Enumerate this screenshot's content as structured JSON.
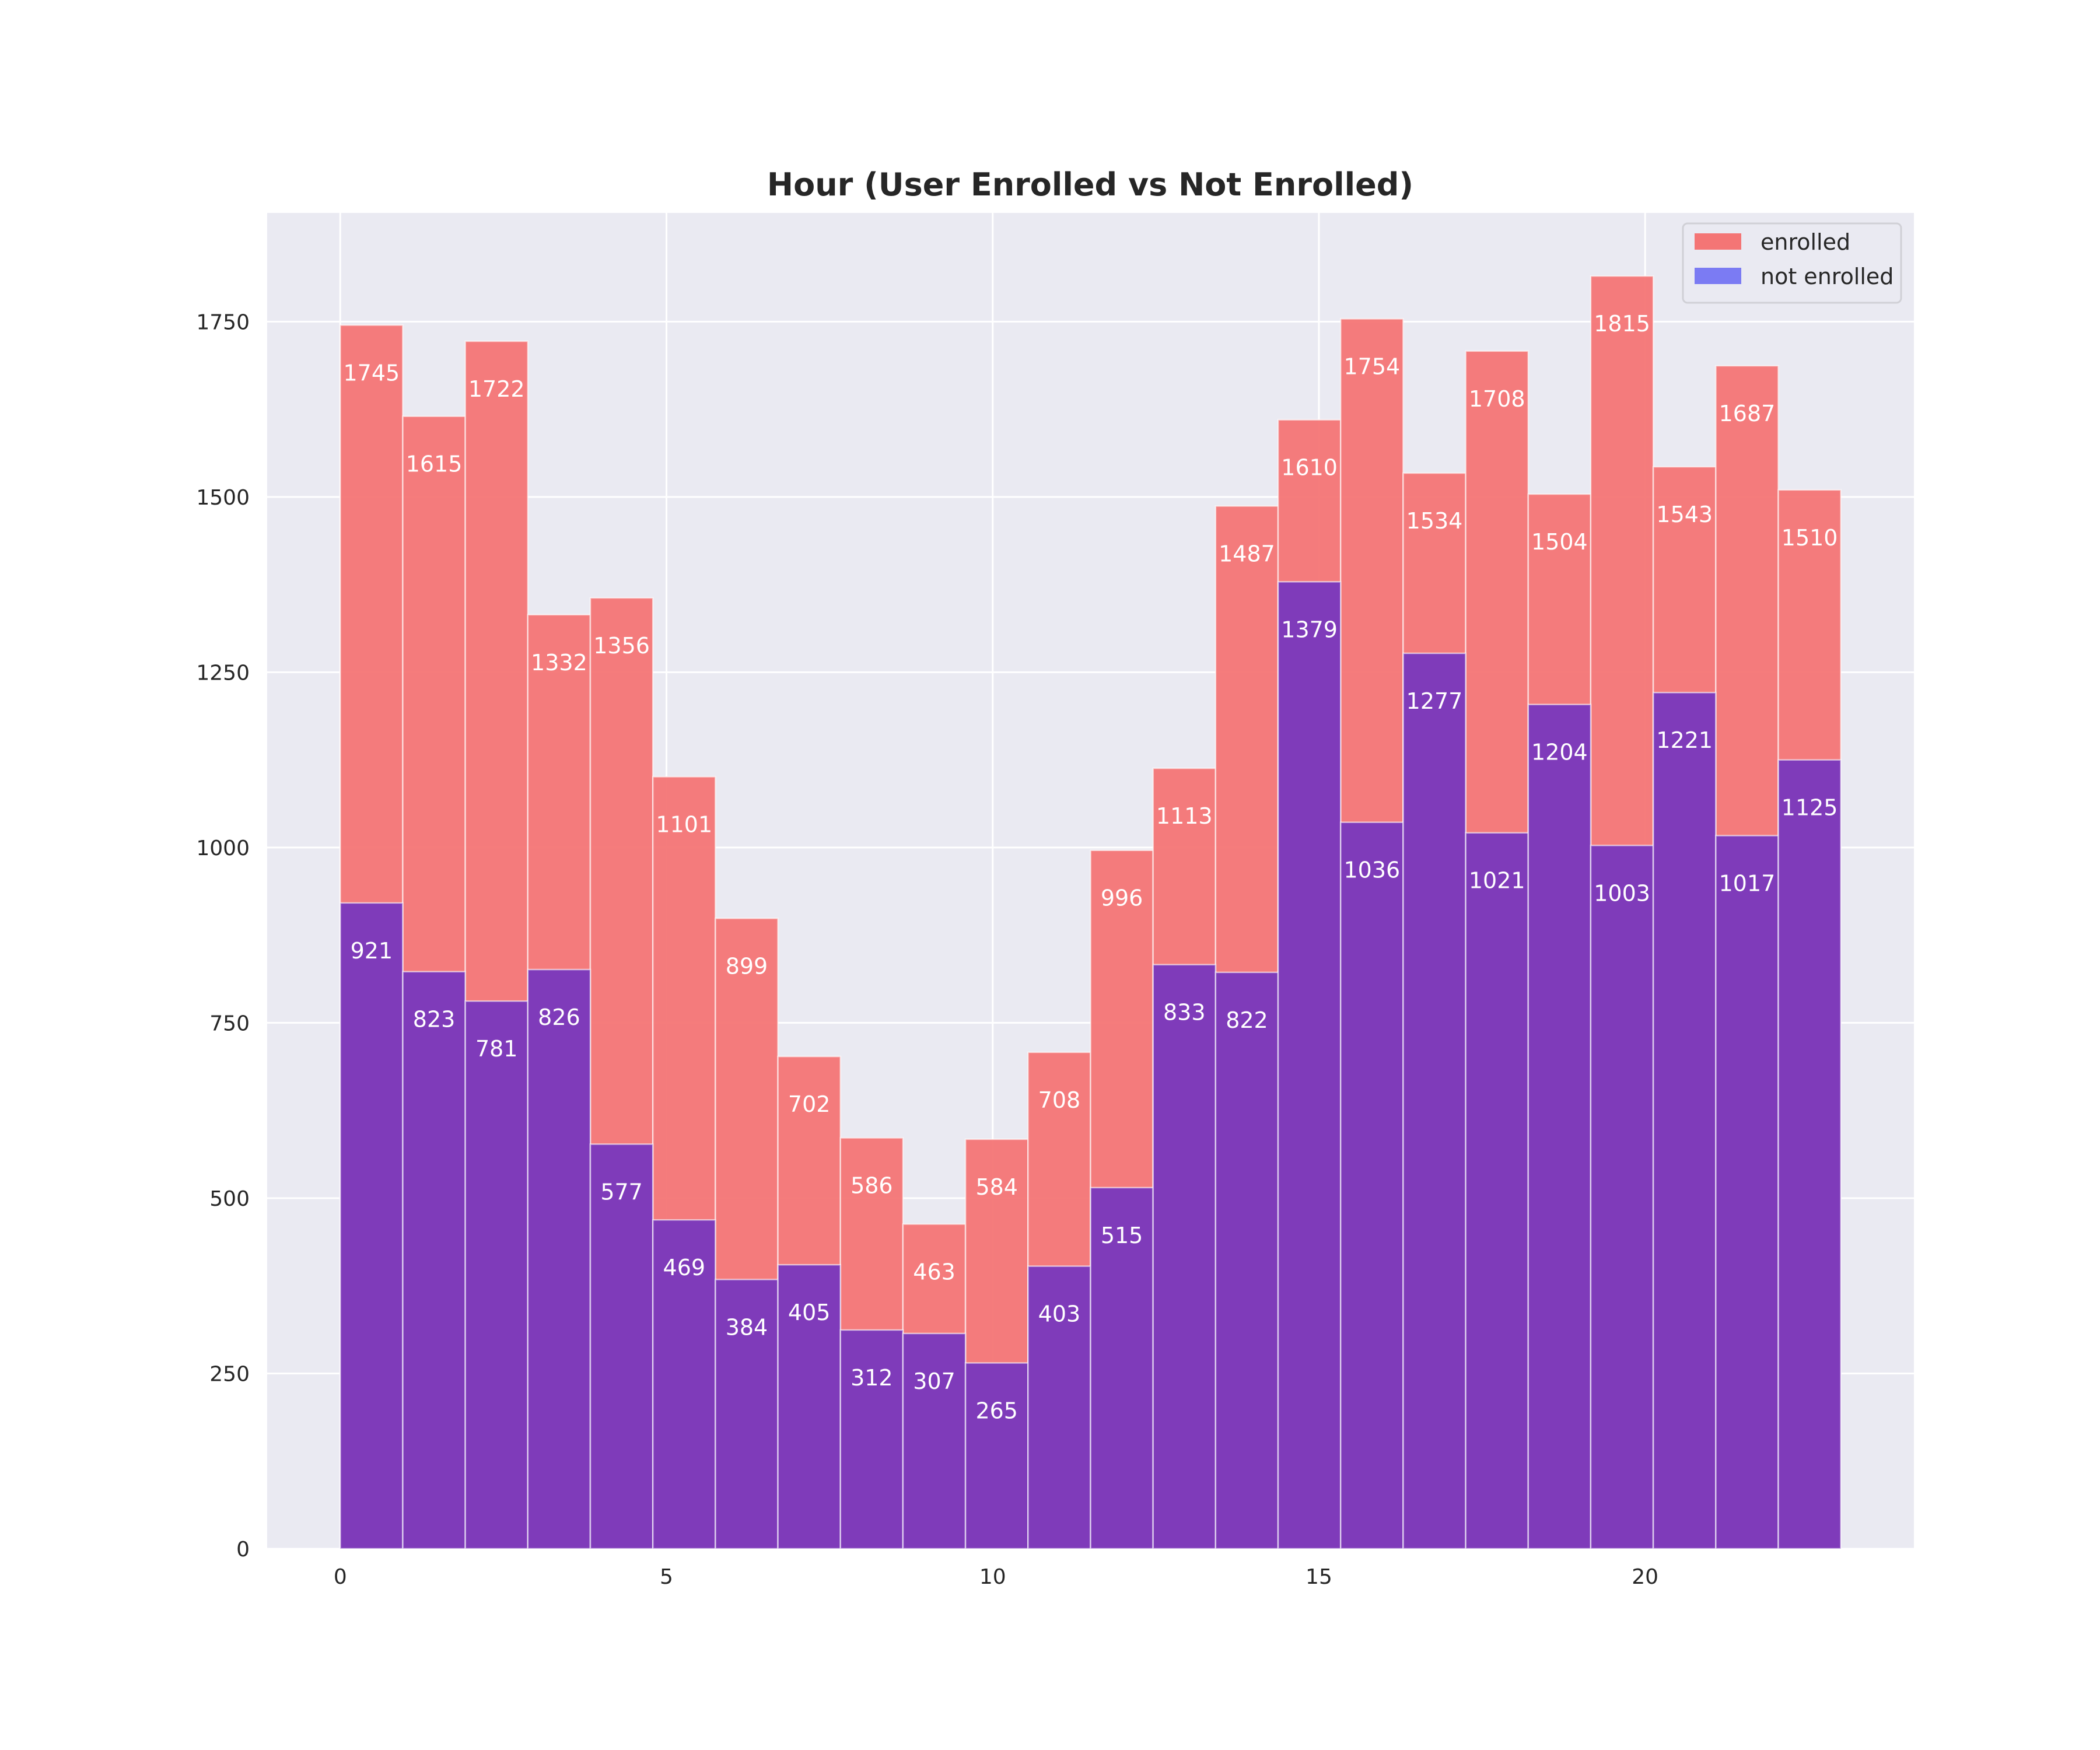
{
  "chart_data": {
    "type": "bar",
    "title": "Hour (User Enrolled vs Not Enrolled)",
    "xlabel": "",
    "ylabel": "",
    "x": [
      0,
      1,
      2,
      3,
      4,
      5,
      6,
      7,
      8,
      9,
      10,
      11,
      12,
      13,
      14,
      15,
      16,
      17,
      18,
      19,
      20,
      21,
      22,
      23
    ],
    "xlim": [
      -1.12,
      24.12
    ],
    "ylim": [
      0,
      1905
    ],
    "x_ticks": [
      "0",
      "5",
      "10",
      "15",
      "20"
    ],
    "y_ticks": [
      "0",
      "250",
      "500",
      "750",
      "1000",
      "1250",
      "1500",
      "1750"
    ],
    "grid": true,
    "legend_position": "top-right",
    "series": [
      {
        "name": "enrolled",
        "color": "#f47575",
        "values": [
          1745,
          1615,
          1722,
          1332,
          1356,
          1101,
          899,
          702,
          586,
          463,
          584,
          708,
          996,
          1113,
          1487,
          1610,
          1754,
          1534,
          1708,
          1504,
          1815,
          1543,
          1687,
          1510
        ]
      },
      {
        "name": "not enrolled",
        "color": "#7838be",
        "legend_color": "#7b7bf3",
        "values": [
          921,
          823,
          781,
          826,
          577,
          469,
          384,
          405,
          312,
          307,
          265,
          403,
          515,
          833,
          822,
          1379,
          1036,
          1277,
          1021,
          1204,
          1003,
          1221,
          1017,
          1125
        ]
      }
    ],
    "background_color": "#eaeaf2"
  }
}
